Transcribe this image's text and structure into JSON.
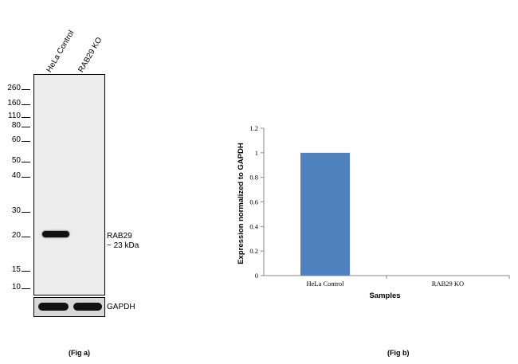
{
  "fig_a": {
    "caption": "(Fig a)",
    "lanes": [
      "HeLa Control",
      "RAB29 KO"
    ],
    "markers": [
      "260",
      "160",
      "110",
      "80",
      "60",
      "50",
      "40",
      "30",
      "20",
      "15",
      "10"
    ],
    "band_label_line1": "RAB29",
    "band_label_line2": "~ 23 kDa",
    "loading_control_label": "GAPDH"
  },
  "fig_b": {
    "caption": "(Fig b)"
  },
  "chart_data": {
    "type": "bar",
    "categories": [
      "HeLa Control",
      "RAB29 KO"
    ],
    "values": [
      1,
      0
    ],
    "title": "",
    "xlabel": "Samples",
    "ylabel": "Expression  normalized to GAPDH",
    "ylim": [
      0,
      1.2
    ],
    "yticks": [
      "0",
      "0.2",
      "0.4",
      "0.6",
      "0.8",
      "1",
      "1.2"
    ],
    "grid": false,
    "bar_color": "#4f81bd"
  }
}
